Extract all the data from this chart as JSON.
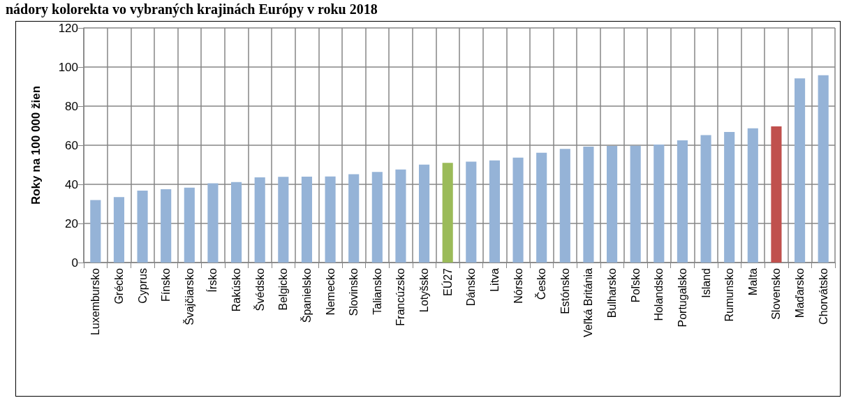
{
  "chart_data": {
    "type": "bar",
    "title": "nádory kolorekta vo vybraných krajinách Európy v roku 2018",
    "ylabel": "Roky na 100 000 žien",
    "categories": [
      "Luxembursko",
      "Grécko",
      "Cyprus",
      "Fínsko",
      "Švajčiarsko",
      "Írsko",
      "Rakúsko",
      "Švédsko",
      "Belgicko",
      "Španielsko",
      "Nemecko",
      "Slovinsko",
      "Taliansko",
      "Francúzsko",
      "Lotyšsko",
      "EÚ27",
      "Dánsko",
      "Litva",
      "Nórsko",
      "Česko",
      "Estónsko",
      "Veľká Británia",
      "Bulharsko",
      "Poľsko",
      "Holandsko",
      "Portugalsko",
      "Island",
      "Rumunsko",
      "Malta",
      "Slovensko",
      "Maďarsko",
      "Chorvátsko"
    ],
    "values": [
      32,
      33.5,
      36.8,
      37.5,
      38.3,
      40.5,
      41.2,
      43.6,
      43.8,
      43.9,
      44,
      45.2,
      46.3,
      47.6,
      50.1,
      51,
      51.6,
      52.2,
      53.7,
      56.2,
      58.1,
      59.3,
      59.6,
      59.7,
      60.4,
      62.5,
      65.2,
      66.8,
      68.7,
      69.6,
      94.2,
      95.8
    ],
    "colors": [
      "#95b3d7",
      "#95b3d7",
      "#95b3d7",
      "#95b3d7",
      "#95b3d7",
      "#95b3d7",
      "#95b3d7",
      "#95b3d7",
      "#95b3d7",
      "#95b3d7",
      "#95b3d7",
      "#95b3d7",
      "#95b3d7",
      "#95b3d7",
      "#95b3d7",
      "#9bbb59",
      "#95b3d7",
      "#95b3d7",
      "#95b3d7",
      "#95b3d7",
      "#95b3d7",
      "#95b3d7",
      "#95b3d7",
      "#95b3d7",
      "#95b3d7",
      "#95b3d7",
      "#95b3d7",
      "#95b3d7",
      "#95b3d7",
      "#c0504d",
      "#95b3d7",
      "#95b3d7"
    ],
    "ylim": [
      0,
      120
    ],
    "yticks": [
      0,
      20,
      40,
      60,
      80,
      100,
      120
    ],
    "grid": true
  }
}
